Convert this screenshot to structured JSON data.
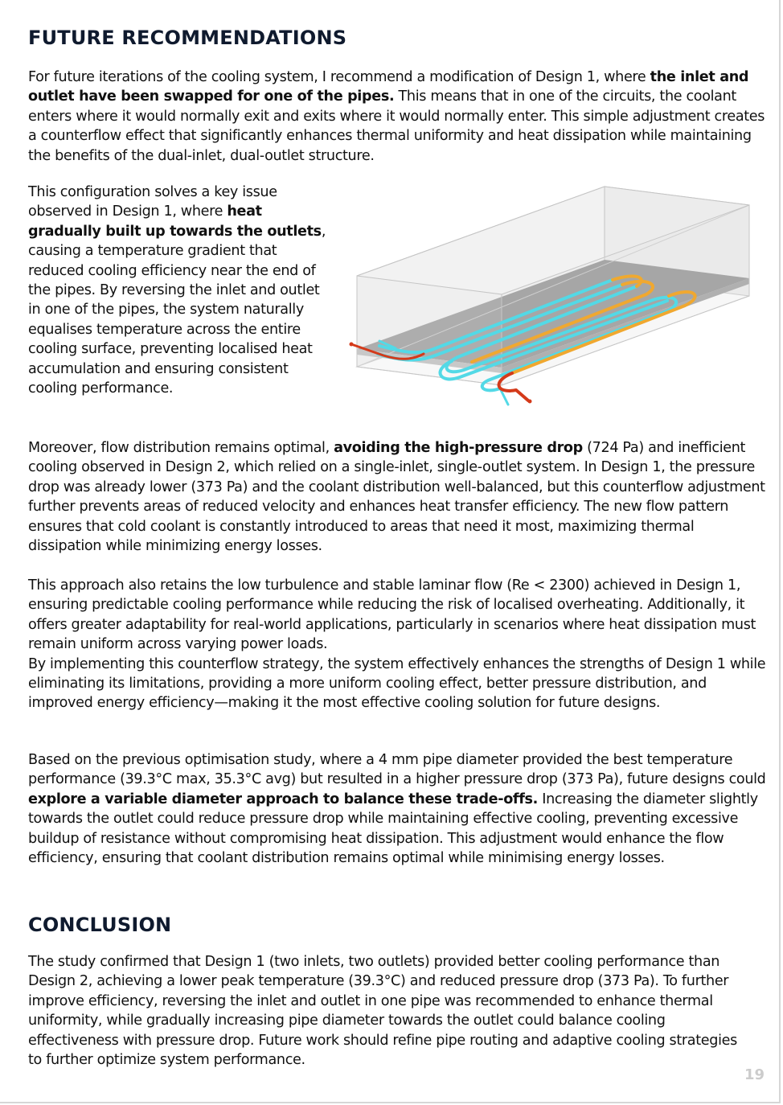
{
  "headings": {
    "future": "FUTURE RECOMMENDATIONS",
    "conclusion": "CONCLUSION"
  },
  "paragraphs": {
    "p1": {
      "a": "For future iterations of the cooling system, I recommend a modification of Design 1, where ",
      "b": "the inlet and outlet have been swapped for one of the pipes.",
      "c": " This means that in one of the circuits, the coolant enters where it would normally exit and exits where it would normally enter. This simple adjustment creates a counterflow effect that significantly enhances thermal uniformity and heat dissipation while maintaining the benefits of the dual-inlet, dual-outlet structure."
    },
    "p2": {
      "a": "This configuration solves a key issue observed in Design 1, where ",
      "b": "heat gradually built up towards the outlets",
      "c": ", causing a temperature gradient that reduced cooling efficiency near the end of the pipes. By reversing the inlet and outlet in one of the pipes, the system naturally equalises temperature across the entire cooling surface, preventing localised heat accumulation and ensuring consistent cooling performance."
    },
    "p3": {
      "a": "Moreover, flow distribution remains optimal, ",
      "b": "avoiding the high-pressure drop",
      "c": " (724 Pa) and inefficient cooling observed in Design 2, which relied on a single-inlet, single-outlet system. In Design 1, the pressure drop was already lower (373 Pa) and the coolant distribution well-balanced, but this counterflow adjustment further prevents areas of reduced velocity and enhances heat transfer efficiency. The new flow pattern ensures that cold coolant is constantly introduced to areas that need it most, maximizing thermal dissipation while minimizing energy losses."
    },
    "p4": {
      "a": "This approach also retains the low turbulence and stable laminar flow (Re < 2300) achieved in Design 1, ensuring predictable cooling performance while reducing the risk of localised overheating. Additionally, it offers greater adaptability for real-world applications, particularly in scenarios where heat dissipation must remain uniform across varying power loads.",
      "b": "By implementing this counterflow strategy, the system effectively enhances the strengths of Design 1 while eliminating its limitations, providing a more uniform cooling effect, better pressure distribution, and improved energy efficiency—making it the most effective cooling solution for future designs."
    },
    "p5": {
      "a": "Based on the previous optimisation study, where a 4 mm pipe diameter provided the best temperature performance (39.3°C max, 35.3°C avg) but resulted in a higher pressure drop (373 Pa), future designs could ",
      "b": "explore a variable diameter approach to balance these trade-offs.",
      "c": " Increasing the diameter slightly towards the outlet could reduce pressure drop while maintaining effective cooling, preventing excessive buildup of resistance without compromising heat dissipation. This adjustment would enhance the flow efficiency, ensuring that coolant distribution remains optimal while minimising energy losses."
    },
    "p6": {
      "a": "The study confirmed that Design 1 (two inlets, two outlets) provided better cooling performance than Design 2, achieving a lower peak temperature (39.3°C) and reduced pressure drop (373 Pa). To further improve efficiency, reversing the inlet and outlet in one pipe was recommended to enhance thermal uniformity, while gradually increasing pipe diameter towards the outlet could balance cooling effectiveness with pressure drop. Future work should refine pipe routing and adaptive cooling strategies to further optimize system performance."
    }
  },
  "figure": {
    "colors": {
      "cold": "#53d9e6",
      "warm": "#f0a830",
      "hot": "#d43a1a",
      "plate": "#8c8c8c",
      "box": "#e4e4e4"
    }
  },
  "page_number": "19"
}
